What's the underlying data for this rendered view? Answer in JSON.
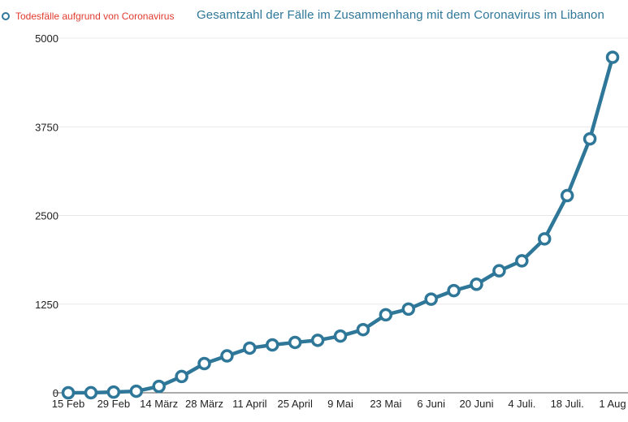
{
  "legend": {
    "label": "Todesfälle aufgrund von Coronavirus",
    "marker_color": "#2f7799",
    "label_color": "#e23b2e"
  },
  "chart_data": {
    "type": "line",
    "title": "Gesamtzahl der Fälle im Zusammenhang mit dem Coronavirus im Libanon",
    "xlabel": "",
    "ylabel": "",
    "ylim": [
      0,
      5000
    ],
    "yticks": [
      "0",
      "1250",
      "2500",
      "3750",
      "5000"
    ],
    "ytick_values": [
      0,
      1250,
      2500,
      3750,
      5000
    ],
    "xtick_labels": [
      "15 Feb",
      "29 Feb",
      "14 März",
      "28 März",
      "11 April",
      "25 April",
      "9 Mai",
      "23 Mai",
      "6 Juni",
      "20 Juni",
      "4 Juli.",
      "18 Juli.",
      "1 Aug"
    ],
    "grid": true,
    "line_color": "#2f7799",
    "series": [
      {
        "values": [
          0,
          1,
          10,
          22,
          90,
          230,
          412,
          520,
          630,
          675,
          710,
          740,
          800,
          890,
          1100,
          1180,
          1320,
          1440,
          1530,
          1720,
          1860,
          2170,
          2780,
          3580,
          4730
        ]
      }
    ]
  }
}
